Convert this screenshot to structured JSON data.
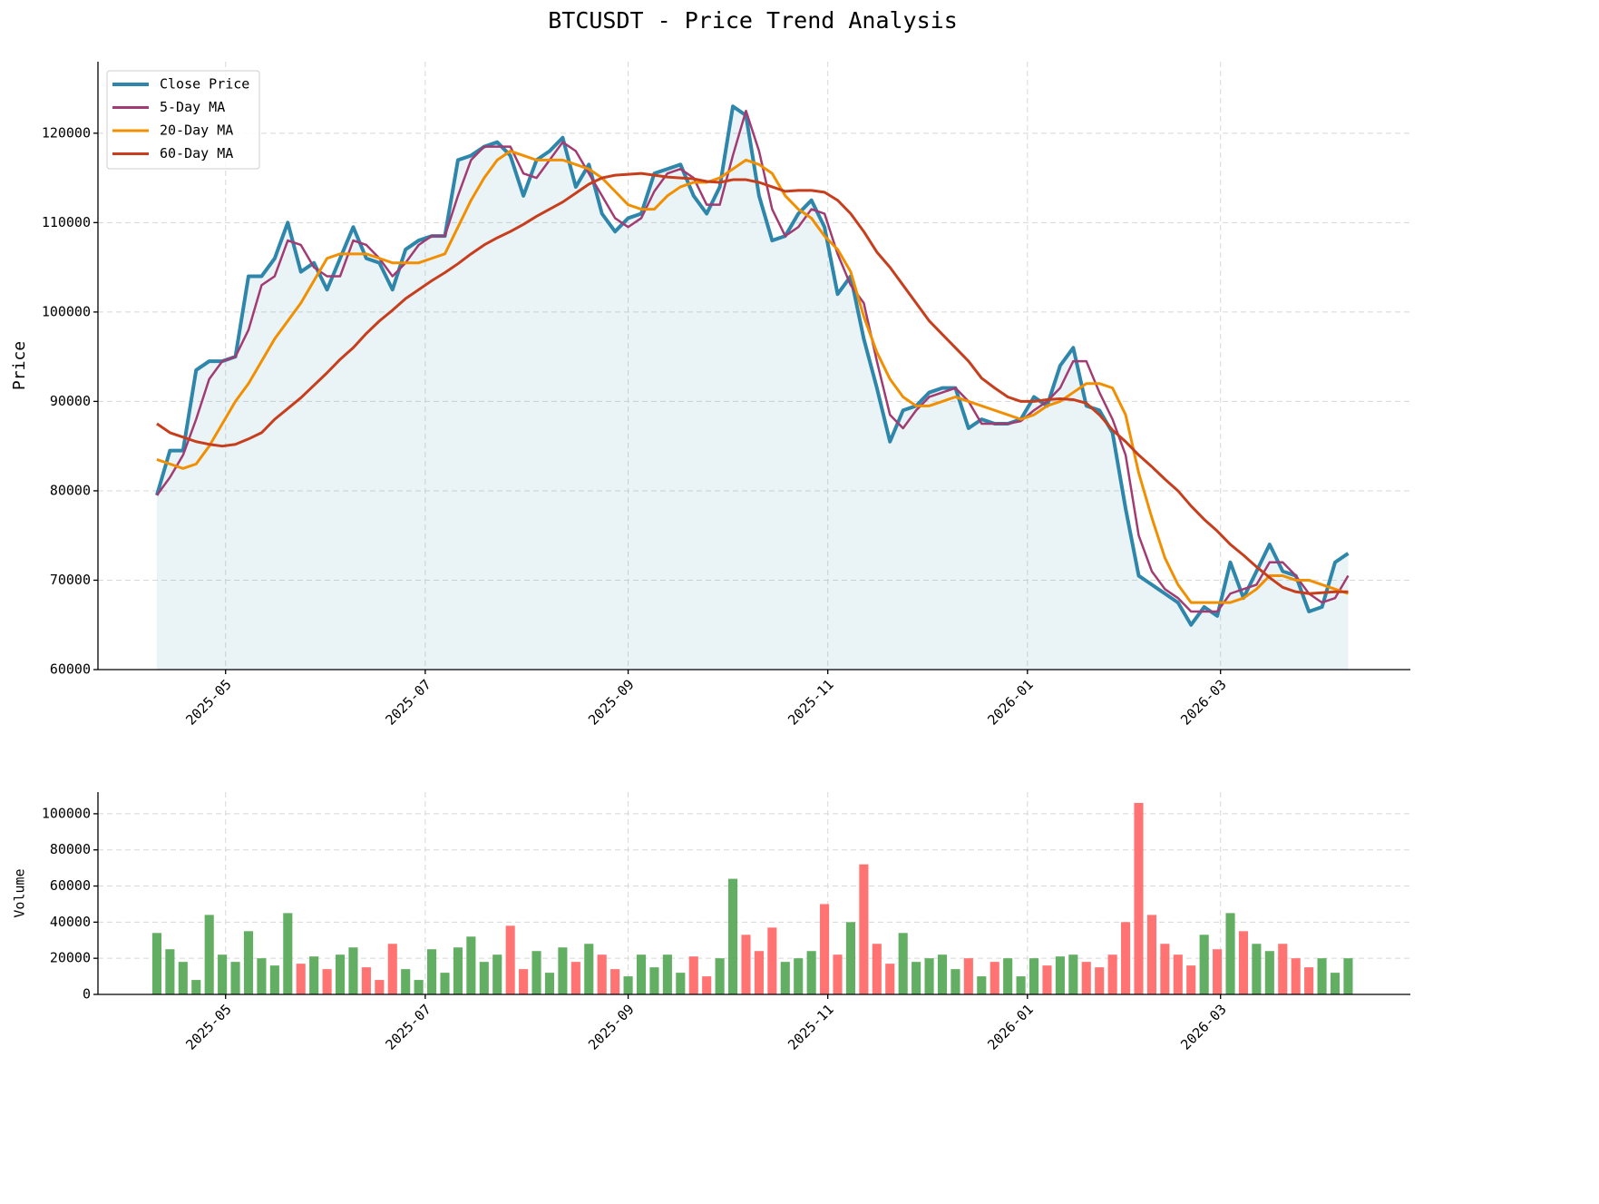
{
  "chart_data": [
    {
      "type": "line",
      "title": "BTCUSDT - Price Trend Analysis",
      "y_label": "Price",
      "x": [
        9,
        13,
        17,
        21,
        25,
        29,
        33,
        37,
        41,
        45,
        49,
        53,
        57,
        61,
        65,
        69,
        73,
        77,
        81,
        85,
        89,
        93,
        97,
        101,
        105,
        109,
        113,
        117,
        121,
        125,
        129,
        133,
        137,
        141,
        145,
        149,
        153,
        157,
        161,
        165,
        169,
        173,
        177,
        181,
        185,
        189,
        193,
        197,
        201,
        205,
        209,
        213,
        217,
        221,
        225,
        229,
        233,
        237,
        241,
        245,
        249,
        253,
        257,
        261,
        265,
        269,
        273,
        277,
        281,
        285,
        289,
        293,
        297,
        301,
        305,
        309,
        313,
        317,
        321,
        325,
        329,
        333,
        337,
        341,
        345,
        349,
        353,
        357,
        361,
        365,
        369,
        373
      ],
      "series": [
        {
          "name": "Close Price",
          "color": "#2e86ab",
          "area": true,
          "values": [
            79500,
            84500,
            84500,
            93500,
            94500,
            94500,
            95000,
            104000,
            104000,
            106000,
            110000,
            104500,
            105500,
            102500,
            106000,
            109500,
            106000,
            105500,
            102500,
            107000,
            108000,
            108500,
            108500,
            117000,
            117500,
            118500,
            119000,
            117500,
            113000,
            117000,
            118000,
            119500,
            114000,
            116500,
            111000,
            109000,
            110500,
            111000,
            115500,
            116000,
            116500,
            113000,
            111000,
            114000,
            123000,
            122000,
            113000,
            108000,
            108500,
            111000,
            112500,
            109500,
            102000,
            104000,
            97000,
            91500,
            85500,
            89000,
            89500,
            91000,
            91500,
            91500,
            87000,
            88000,
            87500,
            87500,
            88000,
            90500,
            89500,
            94000,
            96000,
            89500,
            89000,
            86500,
            78000,
            70500,
            69500,
            68500,
            67500,
            65000,
            67000,
            66000,
            72000,
            68000,
            71000,
            74000,
            71000,
            70500,
            66500,
            67000,
            72000,
            73000
          ]
        },
        {
          "name": "5-Day MA",
          "color": "#a23b72",
          "values": [
            79500,
            81500,
            84000,
            88000,
            92500,
            94500,
            95000,
            98000,
            103000,
            104000,
            108000,
            107500,
            105000,
            104000,
            104000,
            108000,
            107500,
            106000,
            104000,
            105500,
            107500,
            108500,
            108500,
            113000,
            117000,
            118500,
            118500,
            118500,
            115500,
            115000,
            117000,
            119000,
            118000,
            115500,
            113000,
            110500,
            109500,
            110500,
            113500,
            115500,
            116000,
            115000,
            112000,
            112000,
            117500,
            122500,
            118000,
            111500,
            108500,
            109500,
            111500,
            111000,
            106500,
            103000,
            101000,
            94500,
            88500,
            87000,
            89000,
            90500,
            91000,
            91500,
            90000,
            87500,
            87500,
            87500,
            87800,
            89000,
            90000,
            91500,
            94500,
            94500,
            91000,
            88000,
            84000,
            75000,
            71000,
            69000,
            68000,
            66500,
            66500,
            66500,
            68500,
            69000,
            69500,
            72000,
            72000,
            70500,
            68500,
            67500,
            68000,
            70500
          ]
        },
        {
          "name": "20-Day MA",
          "color": "#f18f01",
          "values": [
            83500,
            83000,
            82500,
            83000,
            85000,
            87500,
            90000,
            92000,
            94500,
            97000,
            99000,
            101000,
            103500,
            106000,
            106500,
            106500,
            106500,
            106000,
            105500,
            105500,
            105500,
            106000,
            106500,
            109500,
            112500,
            115000,
            117000,
            118000,
            117500,
            117000,
            117000,
            117000,
            116500,
            116000,
            115000,
            113500,
            112000,
            111500,
            111500,
            113000,
            114000,
            114500,
            114500,
            115000,
            116000,
            117000,
            116500,
            115500,
            113000,
            111500,
            110500,
            108500,
            107000,
            104500,
            99500,
            95500,
            92500,
            90500,
            89500,
            89500,
            90000,
            90500,
            90000,
            89500,
            89000,
            88500,
            88000,
            88500,
            89500,
            90000,
            91000,
            92000,
            92000,
            91500,
            88500,
            82000,
            77000,
            72500,
            69500,
            67500,
            67500,
            67500,
            67500,
            68000,
            69000,
            70500,
            70500,
            70000,
            70000,
            69500,
            69000,
            68500
          ]
        },
        {
          "name": "60-Day MA",
          "color": "#c73e1d",
          "values": [
            87500,
            86500,
            86000,
            85500,
            85200,
            85000,
            85200,
            85800,
            86500,
            88000,
            89200,
            90400,
            91800,
            93200,
            94700,
            96000,
            97600,
            99000,
            100200,
            101500,
            102500,
            103500,
            104400,
            105400,
            106500,
            107500,
            108300,
            109000,
            109800,
            110700,
            111500,
            112300,
            113300,
            114300,
            115000,
            115300,
            115400,
            115500,
            115300,
            115100,
            115000,
            114900,
            114600,
            114500,
            114800,
            114800,
            114500,
            114000,
            113500,
            113600,
            113600,
            113400,
            112500,
            111000,
            109000,
            106700,
            105000,
            103000,
            101000,
            99000,
            97500,
            96000,
            94500,
            92600,
            91500,
            90500,
            90000,
            90000,
            90200,
            90300,
            90200,
            89800,
            88500,
            86800,
            85500,
            84000,
            82700,
            81300,
            80000,
            78300,
            76800,
            75500,
            74000,
            72800,
            71500,
            70300,
            69200,
            68700,
            68500,
            68600,
            68700,
            68700
          ]
        }
      ],
      "xlim": [
        -9,
        392
      ],
      "ylim": [
        60000,
        128000
      ],
      "xticks": [
        {
          "value": 30,
          "label": "2025-05"
        },
        {
          "value": 91,
          "label": "2025-07"
        },
        {
          "value": 153,
          "label": "2025-09"
        },
        {
          "value": 214,
          "label": "2025-11"
        },
        {
          "value": 275,
          "label": "2026-01"
        },
        {
          "value": 334,
          "label": "2026-03"
        }
      ],
      "yticks": [
        60000,
        70000,
        80000,
        90000,
        100000,
        110000,
        120000
      ],
      "grid": true,
      "legend": "upper left"
    },
    {
      "type": "bar",
      "y_label": "Volume",
      "up_color": "#5aaa5a",
      "down_color": "#ff6b6b",
      "x": [
        9,
        13,
        17,
        21,
        25,
        29,
        33,
        37,
        41,
        45,
        49,
        53,
        57,
        61,
        65,
        69,
        73,
        77,
        81,
        85,
        89,
        93,
        97,
        101,
        105,
        109,
        113,
        117,
        121,
        125,
        129,
        133,
        137,
        141,
        145,
        149,
        153,
        157,
        161,
        165,
        169,
        173,
        177,
        181,
        185,
        189,
        193,
        197,
        201,
        205,
        209,
        213,
        217,
        221,
        225,
        229,
        233,
        237,
        241,
        245,
        249,
        253,
        257,
        261,
        265,
        269,
        273,
        277,
        281,
        285,
        289,
        293,
        297,
        301,
        305,
        309,
        313,
        317,
        321,
        325,
        329,
        333,
        337,
        341,
        345,
        349,
        353,
        357,
        361,
        365,
        369,
        373
      ],
      "values": [
        34000,
        25000,
        18000,
        8000,
        44000,
        22000,
        18000,
        35000,
        20000,
        16000,
        45000,
        17000,
        21000,
        14000,
        22000,
        26000,
        15000,
        8000,
        28000,
        14000,
        8000,
        25000,
        12000,
        26000,
        32000,
        18000,
        22000,
        38000,
        14000,
        24000,
        12000,
        26000,
        18000,
        28000,
        22000,
        14000,
        10000,
        22000,
        15000,
        22000,
        12000,
        21000,
        10000,
        20000,
        64000,
        33000,
        24000,
        37000,
        18000,
        20000,
        24000,
        50000,
        22000,
        40000,
        72000,
        28000,
        17000,
        34000,
        18000,
        20000,
        22000,
        14000,
        20000,
        10000,
        18000,
        20000,
        10000,
        20000,
        16000,
        21000,
        22000,
        18000,
        15000,
        22000,
        40000,
        106000,
        44000,
        28000,
        22000,
        16000,
        33000,
        25000,
        45000,
        35000,
        28000,
        24000,
        28000,
        20000,
        15000,
        20000,
        12000,
        20000
      ],
      "xlim": [
        -9,
        392
      ],
      "ylim": [
        0,
        112000
      ],
      "xticks": [
        {
          "value": 30,
          "label": "2025-05"
        },
        {
          "value": 91,
          "label": "2025-07"
        },
        {
          "value": 153,
          "label": "2025-09"
        },
        {
          "value": 214,
          "label": "2025-11"
        },
        {
          "value": 275,
          "label": "2026-01"
        },
        {
          "value": 334,
          "label": "2026-03"
        }
      ],
      "yticks": [
        0,
        20000,
        40000,
        60000,
        80000,
        100000
      ],
      "grid": true
    }
  ]
}
